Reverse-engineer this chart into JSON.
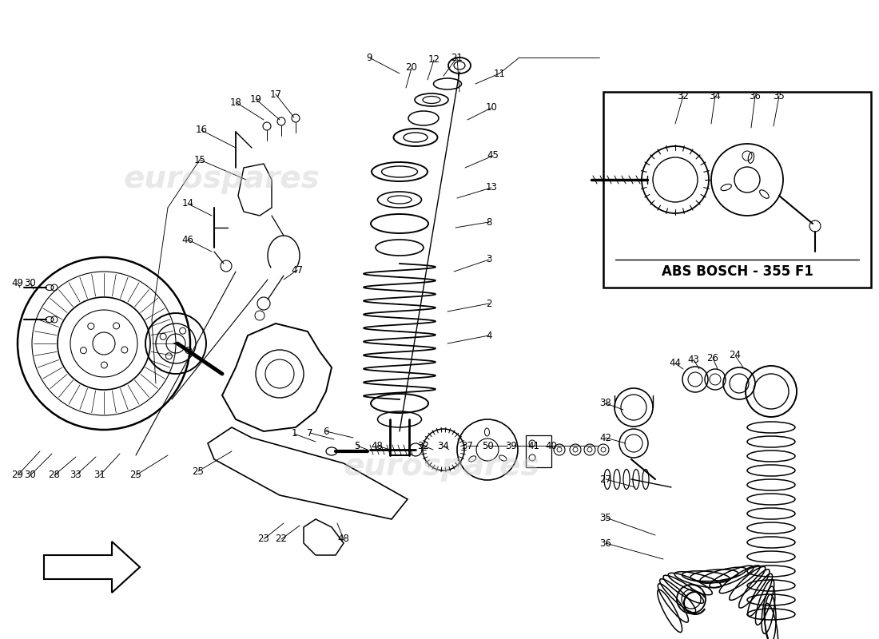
{
  "background_color": "#ffffff",
  "abs_box_label": "ABS BOSCH - 355 F1",
  "fig_width": 11.0,
  "fig_height": 8.0,
  "line_color": "#000000",
  "watermark_color": "#cccccc",
  "watermark_alpha": 0.45,
  "watermark_fontsize": 28,
  "label_fontsize": 8.5,
  "abs_label_fontsize": 12
}
